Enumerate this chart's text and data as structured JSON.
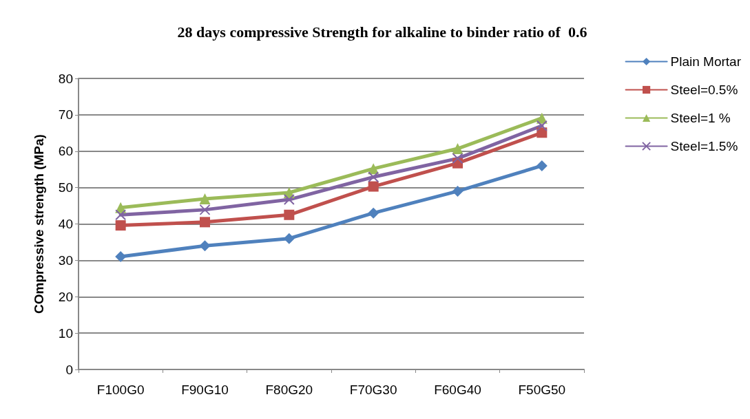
{
  "chart_data": {
    "type": "line",
    "title": "28 days compressive Strength for alkaline to binder ratio of  0.6",
    "ylabel": "COmpressive strength (MPa)",
    "categories": [
      "F100G0",
      "F90G10",
      "F80G20",
      "F70G30",
      "F60G40",
      "F50G50"
    ],
    "series": [
      {
        "name": "Plain Mortar",
        "color": "#4f81bd",
        "marker": "diamond",
        "values": [
          31,
          34,
          36,
          43,
          49,
          56
        ]
      },
      {
        "name": "Steel=0.5%",
        "color": "#c0504d",
        "marker": "square",
        "values": [
          39.6,
          40.5,
          42.5,
          50.3,
          56.7,
          65.1
        ]
      },
      {
        "name": "Steel=1 %",
        "color": "#9bbb59",
        "marker": "triangle",
        "values": [
          44.5,
          46.9,
          48.6,
          55.2,
          60.7,
          69.1
        ]
      },
      {
        "name": "Steel=1.5%",
        "color": "#8064a2",
        "marker": "cross",
        "values": [
          42.5,
          43.9,
          46.7,
          52.9,
          58,
          67
        ]
      }
    ],
    "ylim": [
      0,
      80
    ],
    "yticks": [
      0,
      10,
      20,
      30,
      40,
      50,
      60,
      70,
      80
    ],
    "grid": "y",
    "legend": "right",
    "line_style": "solid"
  }
}
